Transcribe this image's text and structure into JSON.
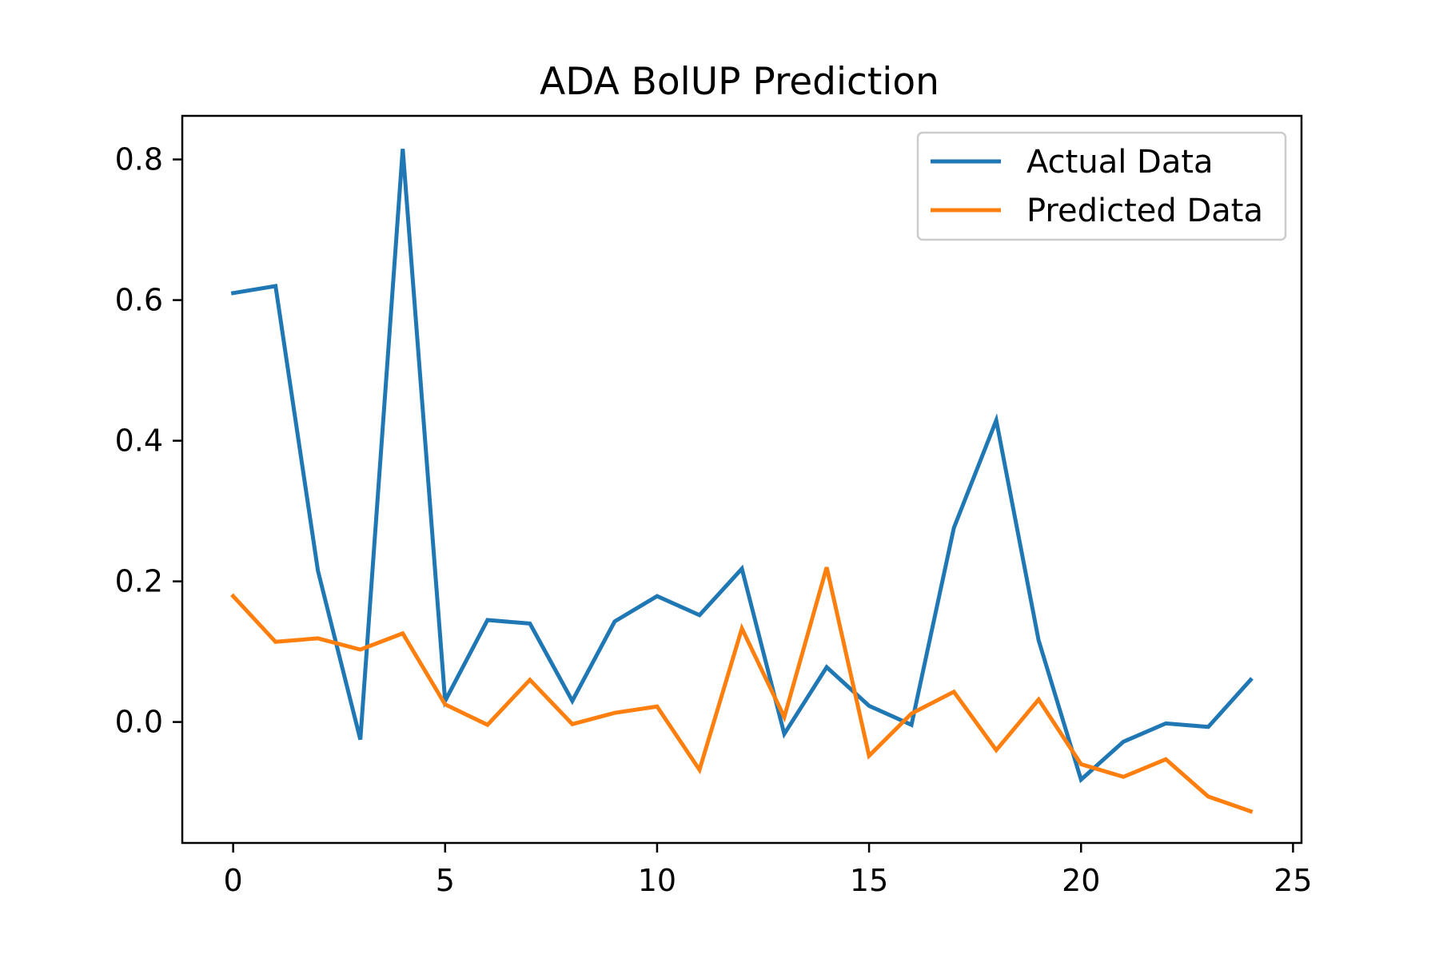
{
  "chart_data": {
    "type": "line",
    "title": "ADA BolUP Prediction",
    "xlabel": "",
    "ylabel": "",
    "x": [
      0,
      1,
      2,
      3,
      4,
      5,
      6,
      7,
      8,
      9,
      10,
      11,
      12,
      13,
      14,
      15,
      16,
      17,
      18,
      19,
      20,
      21,
      22,
      23,
      24
    ],
    "series": [
      {
        "name": "Actual Data",
        "color": "#1f77b4",
        "values": [
          0.61,
          0.62,
          0.215,
          -0.025,
          0.815,
          0.03,
          0.145,
          0.14,
          0.03,
          0.143,
          0.179,
          0.152,
          0.218,
          -0.017,
          0.078,
          0.023,
          -0.004,
          0.276,
          0.429,
          0.116,
          -0.082,
          -0.028,
          -0.002,
          -0.007,
          0.06
        ]
      },
      {
        "name": "Predicted Data",
        "color": "#ff7f0e",
        "values": [
          0.179,
          0.114,
          0.119,
          0.103,
          0.126,
          0.025,
          -0.004,
          0.06,
          -0.003,
          0.013,
          0.022,
          -0.068,
          0.133,
          0.007,
          0.22,
          -0.048,
          0.012,
          0.043,
          -0.04,
          0.032,
          -0.06,
          -0.078,
          -0.053,
          -0.106,
          -0.127
        ]
      }
    ],
    "xticks": [
      0,
      5,
      10,
      15,
      20,
      25
    ],
    "yticks": [
      0.0,
      0.2,
      0.4,
      0.6,
      0.8
    ],
    "xtick_labels": [
      "0",
      "5",
      "10",
      "15",
      "20",
      "25"
    ],
    "ytick_labels": [
      "0.0",
      "0.2",
      "0.4",
      "0.6",
      "0.8"
    ],
    "xlim": [
      -1.2,
      25.2
    ],
    "ylim": [
      -0.172,
      0.862
    ],
    "grid": false,
    "legend_position": "upper right"
  }
}
